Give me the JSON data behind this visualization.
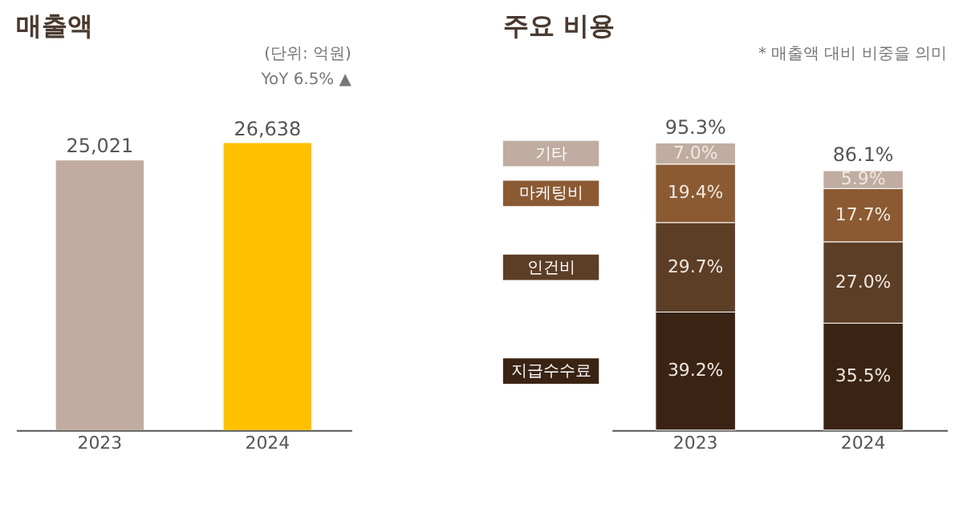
{
  "chart_data": [
    {
      "type": "bar",
      "title": "매출액",
      "categories": [
        "2023",
        "2024"
      ],
      "values": [
        25021,
        26638
      ],
      "colors": [
        "#c0aca0",
        "#ffc000"
      ],
      "value_labels": [
        "25,021",
        "26,638"
      ],
      "annotations": [
        "(단위: 억원)",
        "YoY 6.5% ▲"
      ],
      "grid": false
    },
    {
      "type": "bar",
      "title": "주요 비용",
      "stacked": true,
      "categories": [
        "2023",
        "2024"
      ],
      "legend": "left",
      "grid": false,
      "annotations": [
        "* 매출액 대비 비중을 의미"
      ],
      "tick_labels": "x",
      "totals": [
        "95.3%",
        "86.1%"
      ],
      "series": [
        {
          "name": "지급수수료",
          "color": "#3b2314",
          "values": [
            39.2,
            35.5
          ],
          "value_labels": [
            "39.2%",
            "35.5%"
          ]
        },
        {
          "name": "인건비",
          "color": "#5c3d26",
          "values": [
            29.7,
            27.0
          ],
          "value_labels": [
            "29.7%",
            "27.0%"
          ]
        },
        {
          "name": "마케팅비",
          "color": "#8b5a32",
          "values": [
            19.4,
            17.7
          ],
          "value_labels": [
            "19.4%",
            "17.7%"
          ]
        },
        {
          "name": "기타",
          "color": "#c0aca0",
          "values": [
            7.0,
            5.9
          ],
          "value_labels": [
            "7.0%",
            "5.9%"
          ]
        }
      ]
    }
  ]
}
